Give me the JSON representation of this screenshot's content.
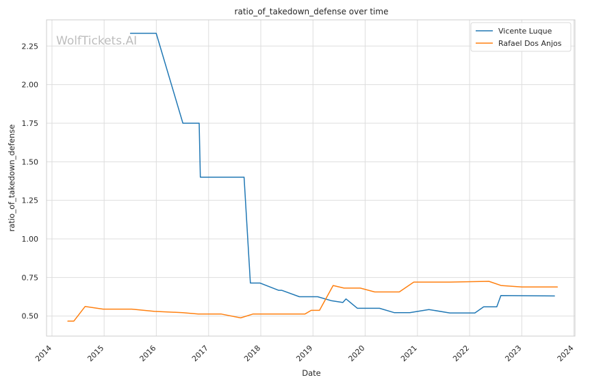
{
  "chart_data": {
    "type": "line",
    "title": "ratio_of_takedown_defense over time",
    "xlabel": "Date",
    "ylabel": "ratio_of_takedown_defense",
    "watermark": "WolfTickets.AI",
    "grid": true,
    "legend_position": "top-right",
    "x_type": "date",
    "xlim": [
      "2013-11-24",
      "2024-01-08"
    ],
    "ylim": [
      0.37,
      2.42
    ],
    "x_ticks": [
      "2014",
      "2015",
      "2016",
      "2017",
      "2018",
      "2019",
      "2020",
      "2021",
      "2022",
      "2023",
      "2024"
    ],
    "y_ticks": [
      "0.50",
      "0.75",
      "1.00",
      "1.25",
      "1.50",
      "1.75",
      "2.00",
      "2.25"
    ],
    "series": [
      {
        "name": "Vicente Luque",
        "color": "#1f77b4",
        "points": [
          [
            "2015-07-04",
            2.333
          ],
          [
            "2015-12-31",
            2.333
          ],
          [
            "2016-07-05",
            1.75
          ],
          [
            "2016-10-27",
            1.75
          ],
          [
            "2016-11-04",
            1.4
          ],
          [
            "2017-09-06",
            1.4
          ],
          [
            "2017-10-20",
            0.714
          ],
          [
            "2017-12-26",
            0.714
          ],
          [
            "2018-05-05",
            0.667
          ],
          [
            "2018-05-27",
            0.667
          ],
          [
            "2018-09-28",
            0.625
          ],
          [
            "2019-02-03",
            0.625
          ],
          [
            "2019-05-08",
            0.6
          ],
          [
            "2019-07-29",
            0.588
          ],
          [
            "2019-08-20",
            0.611
          ],
          [
            "2019-11-08",
            0.55
          ],
          [
            "2020-04-11",
            0.55
          ],
          [
            "2020-07-22",
            0.522
          ],
          [
            "2020-11-09",
            0.522
          ],
          [
            "2021-03-22",
            0.542
          ],
          [
            "2021-08-16",
            0.52
          ],
          [
            "2022-02-07",
            0.52
          ],
          [
            "2022-04-09",
            0.56
          ],
          [
            "2022-07-10",
            0.56
          ],
          [
            "2022-08-08",
            0.633
          ],
          [
            "2023-08-18",
            0.63
          ]
        ]
      },
      {
        "name": "Rafael Dos Anjos",
        "color": "#ff7f0e",
        "points": [
          [
            "2014-04-22",
            0.467
          ],
          [
            "2014-06-03",
            0.467
          ],
          [
            "2014-08-21",
            0.562
          ],
          [
            "2014-12-25",
            0.545
          ],
          [
            "2015-07-13",
            0.545
          ],
          [
            "2015-12-19",
            0.53
          ],
          [
            "2016-07-02",
            0.522
          ],
          [
            "2016-10-20",
            0.513
          ],
          [
            "2017-03-31",
            0.513
          ],
          [
            "2017-08-13",
            0.488
          ],
          [
            "2017-11-07",
            0.513
          ],
          [
            "2018-11-06",
            0.513
          ],
          [
            "2018-12-20",
            0.537
          ],
          [
            "2019-02-16",
            0.537
          ],
          [
            "2019-05-22",
            0.698
          ],
          [
            "2019-08-06",
            0.681
          ],
          [
            "2019-11-28",
            0.681
          ],
          [
            "2020-03-08",
            0.656
          ],
          [
            "2020-08-27",
            0.656
          ],
          [
            "2020-12-06",
            0.72
          ],
          [
            "2021-08-15",
            0.72
          ],
          [
            "2022-05-16",
            0.725
          ],
          [
            "2022-08-09",
            0.698
          ],
          [
            "2023-01-02",
            0.688
          ],
          [
            "2023-09-07",
            0.688
          ]
        ]
      }
    ]
  }
}
